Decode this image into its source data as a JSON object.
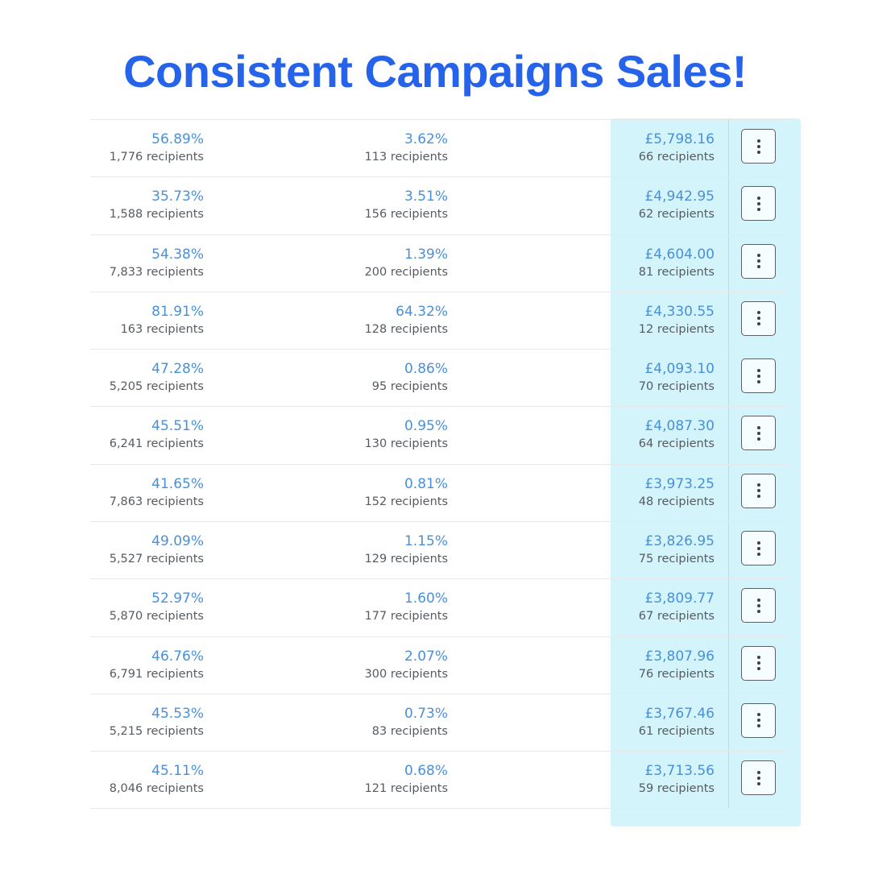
{
  "headline": "Consistent Campaigns Sales!",
  "rows": [
    {
      "open_rate": "56.89%",
      "open_recipients": "1,776 recipients",
      "click_rate": "3.62%",
      "click_recipients": "113 recipients",
      "revenue": "£5,798.16",
      "revenue_recipients": "66 recipients"
    },
    {
      "open_rate": "35.73%",
      "open_recipients": "1,588 recipients",
      "click_rate": "3.51%",
      "click_recipients": "156 recipients",
      "revenue": "£4,942.95",
      "revenue_recipients": "62 recipients"
    },
    {
      "open_rate": "54.38%",
      "open_recipients": "7,833 recipients",
      "click_rate": "1.39%",
      "click_recipients": "200 recipients",
      "revenue": "£4,604.00",
      "revenue_recipients": "81 recipients"
    },
    {
      "open_rate": "81.91%",
      "open_recipients": "163 recipients",
      "click_rate": "64.32%",
      "click_recipients": "128 recipients",
      "revenue": "£4,330.55",
      "revenue_recipients": "12 recipients"
    },
    {
      "open_rate": "47.28%",
      "open_recipients": "5,205 recipients",
      "click_rate": "0.86%",
      "click_recipients": "95 recipients",
      "revenue": "£4,093.10",
      "revenue_recipients": "70 recipients"
    },
    {
      "open_rate": "45.51%",
      "open_recipients": "6,241 recipients",
      "click_rate": "0.95%",
      "click_recipients": "130 recipients",
      "revenue": "£4,087.30",
      "revenue_recipients": "64 recipients"
    },
    {
      "open_rate": "41.65%",
      "open_recipients": "7,863 recipients",
      "click_rate": "0.81%",
      "click_recipients": "152 recipients",
      "revenue": "£3,973.25",
      "revenue_recipients": "48 recipients"
    },
    {
      "open_rate": "49.09%",
      "open_recipients": "5,527 recipients",
      "click_rate": "1.15%",
      "click_recipients": "129 recipients",
      "revenue": "£3,826.95",
      "revenue_recipients": "75 recipients"
    },
    {
      "open_rate": "52.97%",
      "open_recipients": "5,870 recipients",
      "click_rate": "1.60%",
      "click_recipients": "177 recipients",
      "revenue": "£3,809.77",
      "revenue_recipients": "67 recipients"
    },
    {
      "open_rate": "46.76%",
      "open_recipients": "6,791 recipients",
      "click_rate": "2.07%",
      "click_recipients": "300 recipients",
      "revenue": "£3,807.96",
      "revenue_recipients": "76 recipients"
    },
    {
      "open_rate": "45.53%",
      "open_recipients": "5,215 recipients",
      "click_rate": "0.73%",
      "click_recipients": "83 recipients",
      "revenue": "£3,767.46",
      "revenue_recipients": "61 recipients"
    },
    {
      "open_rate": "45.11%",
      "open_recipients": "8,046 recipients",
      "click_rate": "0.68%",
      "click_recipients": "121 recipients",
      "revenue": "£3,713.56",
      "revenue_recipients": "59 recipients"
    }
  ],
  "icons": {
    "row_menu": "more-vertical-icon"
  },
  "colors": {
    "headline": "#2563eb",
    "value_text": "#4a90d9",
    "highlight_column": "#d3f4fa"
  }
}
